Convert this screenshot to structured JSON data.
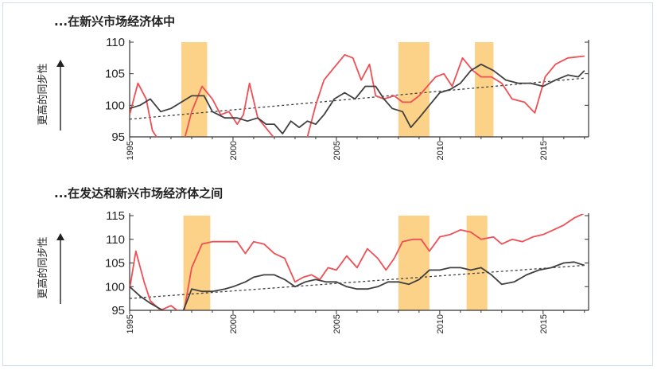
{
  "chart_data": [
    {
      "type": "line",
      "title": "...在新兴市场经济体中",
      "ylabel": "更高的同步性",
      "ylim": [
        95,
        110
      ],
      "yticks": [
        "95",
        "100",
        "105",
        "110"
      ],
      "xlim": [
        1995,
        2017.2
      ],
      "xticks": [
        "1995",
        "2000",
        "2005",
        "2010",
        "2015"
      ],
      "shaded_periods": [
        [
          1997.5,
          1998.75
        ],
        [
          2008,
          2009.5
        ],
        [
          2011.7,
          2012.6
        ]
      ],
      "colors": {
        "red": "#ef4f55",
        "black": "#404040",
        "trend": "#404040",
        "shade": "#fbd288"
      },
      "series": [
        {
          "color": "red",
          "points": [
            [
              1995,
              98.5
            ],
            [
              1995.4,
              103.5
            ],
            [
              1995.8,
              101
            ],
            [
              1996.1,
              96
            ],
            [
              1996.5,
              94
            ],
            [
              1997,
              93
            ],
            [
              1997.6,
              94
            ],
            [
              1998,
              99
            ],
            [
              1998.5,
              103
            ],
            [
              1999,
              101
            ],
            [
              1999.4,
              98.5
            ],
            [
              1999.8,
              99
            ],
            [
              2000.2,
              97
            ],
            [
              2000.5,
              98.5
            ],
            [
              2000.8,
              103.5
            ],
            [
              2001.2,
              98
            ],
            [
              2001.7,
              96
            ],
            [
              2002.2,
              94
            ],
            [
              2002.7,
              93.5
            ],
            [
              2003.2,
              93
            ],
            [
              2003.6,
              95
            ],
            [
              2004,
              100
            ],
            [
              2004.4,
              104
            ],
            [
              2004.9,
              106
            ],
            [
              2005.4,
              108
            ],
            [
              2005.8,
              107.5
            ],
            [
              2006.2,
              104
            ],
            [
              2006.6,
              106.5
            ],
            [
              2006.9,
              101.5
            ],
            [
              2007.3,
              101
            ],
            [
              2007.8,
              101.5
            ],
            [
              2008.2,
              100.5
            ],
            [
              2008.6,
              100.5
            ],
            [
              2009,
              101.5
            ],
            [
              2009.4,
              103
            ],
            [
              2009.8,
              104.5
            ],
            [
              2010.2,
              105
            ],
            [
              2010.6,
              103
            ],
            [
              2011.1,
              107.5
            ],
            [
              2011.6,
              105.5
            ],
            [
              2012,
              104.5
            ],
            [
              2012.5,
              104.5
            ],
            [
              2013,
              103.5
            ],
            [
              2013.5,
              101
            ],
            [
              2014.1,
              100.5
            ],
            [
              2014.6,
              98.8
            ],
            [
              2015.1,
              104.5
            ],
            [
              2015.6,
              106.5
            ],
            [
              2016.2,
              107.5
            ],
            [
              2017,
              107.8
            ]
          ]
        },
        {
          "color": "black",
          "points": [
            [
              1995,
              99.5
            ],
            [
              1995.5,
              100
            ],
            [
              1996,
              101
            ],
            [
              1996.5,
              99
            ],
            [
              1997,
              99.5
            ],
            [
              1997.5,
              100.5
            ],
            [
              1998,
              101.5
            ],
            [
              1998.6,
              101.5
            ],
            [
              1999,
              99
            ],
            [
              1999.6,
              98
            ],
            [
              2000.2,
              98
            ],
            [
              2000.7,
              97.5
            ],
            [
              2001.2,
              98
            ],
            [
              2001.6,
              97
            ],
            [
              2002,
              97
            ],
            [
              2002.4,
              95.5
            ],
            [
              2002.8,
              97.5
            ],
            [
              2003.2,
              96.5
            ],
            [
              2003.6,
              97.5
            ],
            [
              2004,
              97
            ],
            [
              2004.4,
              98.5
            ],
            [
              2004.9,
              101
            ],
            [
              2005.4,
              102
            ],
            [
              2005.9,
              101
            ],
            [
              2006.4,
              103
            ],
            [
              2006.9,
              103
            ],
            [
              2007.3,
              101
            ],
            [
              2007.7,
              99.5
            ],
            [
              2008.2,
              99
            ],
            [
              2008.6,
              96.5
            ],
            [
              2009,
              98
            ],
            [
              2009.5,
              100
            ],
            [
              2010,
              102
            ],
            [
              2010.5,
              102.5
            ],
            [
              2011,
              103.5
            ],
            [
              2011.5,
              105.5
            ],
            [
              2012,
              106.5
            ],
            [
              2012.6,
              105.5
            ],
            [
              2013.2,
              104
            ],
            [
              2013.8,
              103.5
            ],
            [
              2014.4,
              103.5
            ],
            [
              2015,
              103
            ],
            [
              2015.6,
              104
            ],
            [
              2016.2,
              104.8
            ],
            [
              2016.7,
              104.5
            ],
            [
              2017,
              105.5
            ]
          ]
        }
      ],
      "trend": [
        [
          1995,
          97.8
        ],
        [
          2017,
          104.3
        ]
      ]
    },
    {
      "type": "line",
      "title": "...在发达和新兴市场经济体之间",
      "ylabel": "更高的同步性",
      "ylim": [
        95,
        115
      ],
      "yticks": [
        "95",
        "100",
        "105",
        "110",
        "115"
      ],
      "xlim": [
        1995,
        2017.2
      ],
      "xticks": [
        "1995",
        "2000",
        "2005",
        "2010",
        "2015"
      ],
      "shaded_periods": [
        [
          1997.6,
          1998.9
        ],
        [
          2008,
          2009.5
        ],
        [
          2011.3,
          2012.3
        ]
      ],
      "colors": {
        "red": "#ef4f55",
        "black": "#404040",
        "trend": "#404040",
        "shade": "#fbd288"
      },
      "series": [
        {
          "color": "red",
          "points": [
            [
              1995,
              99.5
            ],
            [
              1995.3,
              107.5
            ],
            [
              1995.7,
              101
            ],
            [
              1996,
              97
            ],
            [
              1996.5,
              95
            ],
            [
              1997,
              96
            ],
            [
              1997.6,
              94
            ],
            [
              1998,
              104
            ],
            [
              1998.5,
              109
            ],
            [
              1999,
              109.5
            ],
            [
              1999.7,
              109.5
            ],
            [
              2000.2,
              109.5
            ],
            [
              2000.6,
              107
            ],
            [
              2001,
              109.5
            ],
            [
              2001.5,
              109
            ],
            [
              2002,
              107
            ],
            [
              2002.5,
              106
            ],
            [
              2003,
              101
            ],
            [
              2003.4,
              102
            ],
            [
              2003.8,
              102.5
            ],
            [
              2004.2,
              101.5
            ],
            [
              2004.6,
              104
            ],
            [
              2005,
              103.5
            ],
            [
              2005.5,
              106.5
            ],
            [
              2006,
              104
            ],
            [
              2006.5,
              108
            ],
            [
              2007,
              106
            ],
            [
              2007.4,
              103.5
            ],
            [
              2007.8,
              106
            ],
            [
              2008.2,
              109.5
            ],
            [
              2008.7,
              110
            ],
            [
              2009.1,
              110
            ],
            [
              2009.5,
              107.5
            ],
            [
              2010,
              110.5
            ],
            [
              2010.5,
              111
            ],
            [
              2011,
              112
            ],
            [
              2011.5,
              111.5
            ],
            [
              2012,
              110
            ],
            [
              2012.6,
              110.5
            ],
            [
              2013,
              109
            ],
            [
              2013.5,
              110
            ],
            [
              2014,
              109.5
            ],
            [
              2014.5,
              110.5
            ],
            [
              2015,
              111
            ],
            [
              2015.5,
              112
            ],
            [
              2016,
              113
            ],
            [
              2016.5,
              114.5
            ],
            [
              2017,
              115.5
            ]
          ]
        },
        {
          "color": "black",
          "points": [
            [
              1995,
              100
            ],
            [
              1995.5,
              98
            ],
            [
              1996,
              96.5
            ],
            [
              1996.6,
              95
            ],
            [
              1997.2,
              94.5
            ],
            [
              1997.6,
              95
            ],
            [
              1998,
              99.5
            ],
            [
              1998.5,
              99
            ],
            [
              1999,
              99
            ],
            [
              1999.6,
              99.5
            ],
            [
              2000,
              100
            ],
            [
              2000.6,
              101
            ],
            [
              2001,
              102
            ],
            [
              2001.5,
              102.5
            ],
            [
              2002,
              102.5
            ],
            [
              2002.5,
              101.5
            ],
            [
              2003,
              100
            ],
            [
              2003.5,
              101
            ],
            [
              2004,
              101.5
            ],
            [
              2004.5,
              101
            ],
            [
              2005,
              101
            ],
            [
              2005.5,
              100
            ],
            [
              2006,
              99.5
            ],
            [
              2006.5,
              99.5
            ],
            [
              2007,
              100
            ],
            [
              2007.5,
              101
            ],
            [
              2008,
              101
            ],
            [
              2008.5,
              100.5
            ],
            [
              2009,
              101.5
            ],
            [
              2009.5,
              103.5
            ],
            [
              2010,
              103.5
            ],
            [
              2010.5,
              104
            ],
            [
              2011,
              104
            ],
            [
              2011.5,
              103.5
            ],
            [
              2012,
              104
            ],
            [
              2012.5,
              102.5
            ],
            [
              2013,
              100.5
            ],
            [
              2013.6,
              101
            ],
            [
              2014.2,
              102.5
            ],
            [
              2014.8,
              103.5
            ],
            [
              2015.4,
              104
            ],
            [
              2016,
              105
            ],
            [
              2016.5,
              105.2
            ],
            [
              2017,
              104.5
            ]
          ]
        }
      ],
      "trend": [
        [
          1995,
          97.5
        ],
        [
          2017,
          104.5
        ]
      ]
    }
  ]
}
